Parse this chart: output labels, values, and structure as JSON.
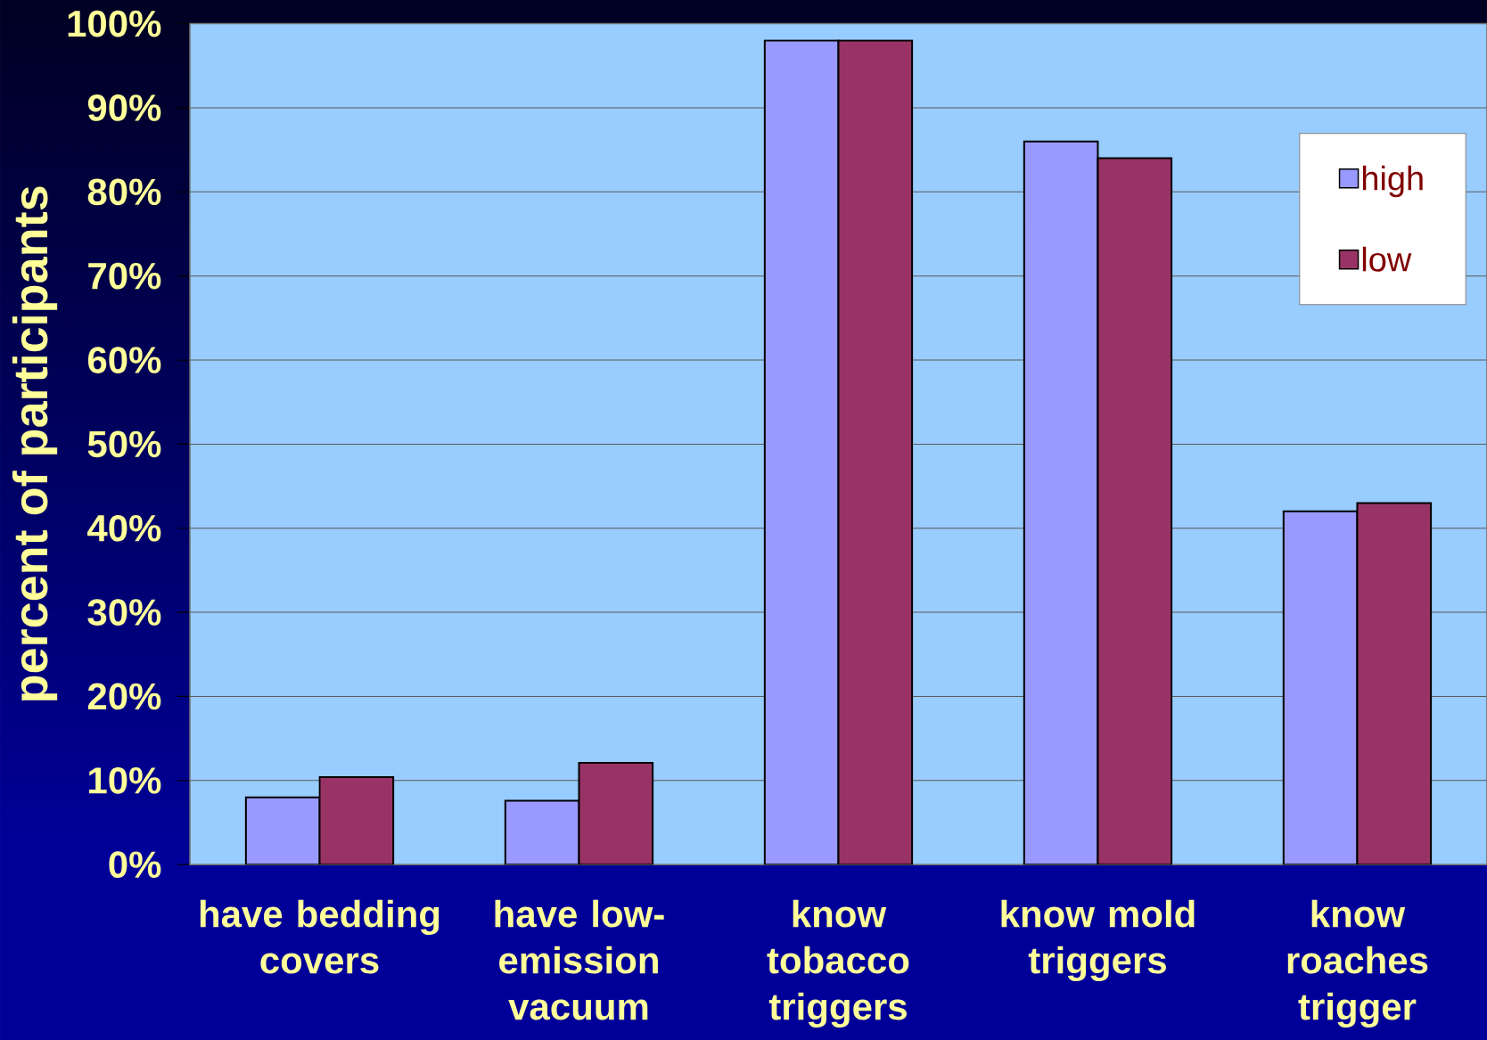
{
  "chart_data": {
    "type": "bar",
    "ylabel": "percent of participants",
    "categories": [
      "have bedding covers",
      "have low-emission vacuum",
      "know tobacco triggers",
      "know mold triggers",
      "know roaches trigger"
    ],
    "series": [
      {
        "name": "high",
        "color": "#9999ff",
        "values": [
          8,
          7.6,
          98,
          86,
          42
        ]
      },
      {
        "name": "low",
        "color": "#993366",
        "values": [
          10.4,
          12.1,
          98,
          84,
          43
        ]
      }
    ],
    "ylim": [
      0,
      100
    ],
    "yticks": [
      {
        "value": 0,
        "label": "0%"
      },
      {
        "value": 10,
        "label": "10%"
      },
      {
        "value": 20,
        "label": "20%"
      },
      {
        "value": 30,
        "label": "30%"
      },
      {
        "value": 40,
        "label": "40%"
      },
      {
        "value": 50,
        "label": "50%"
      },
      {
        "value": 60,
        "label": "60%"
      },
      {
        "value": 70,
        "label": "70%"
      },
      {
        "value": 80,
        "label": "80%"
      },
      {
        "value": 90,
        "label": "90%"
      },
      {
        "value": 100,
        "label": "100%"
      }
    ],
    "grid": "y",
    "legend": "top right"
  }
}
